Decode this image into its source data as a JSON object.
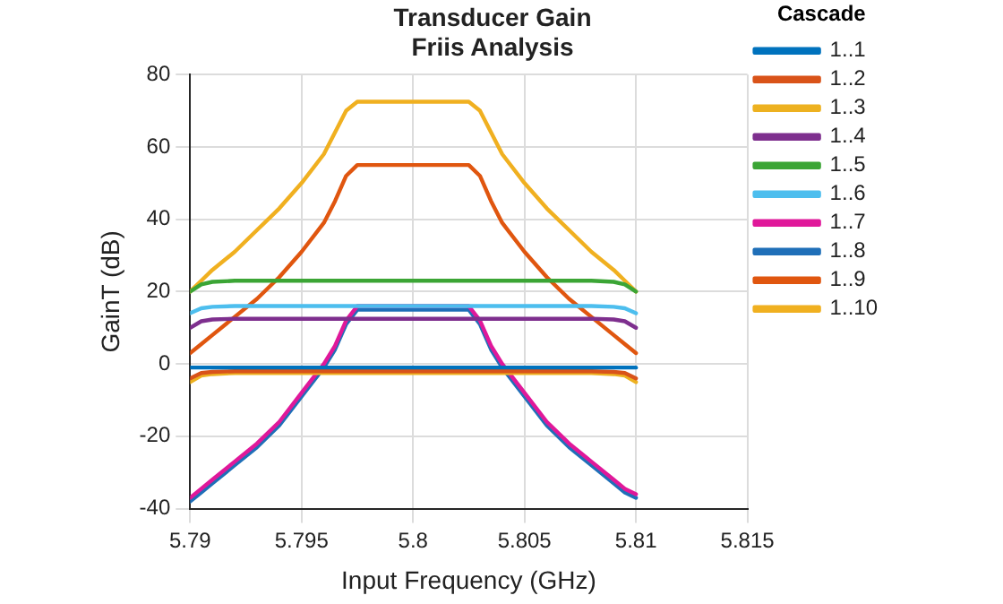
{
  "chart_data": {
    "type": "line",
    "title": "Transducer Gain\nFriis Analysis",
    "xlabel": "Input Frequency (GHz)",
    "ylabel": "GainT (dB)",
    "legend_title": "Cascade",
    "legend": "right",
    "grid": true,
    "marker": "none",
    "line_style": "solid",
    "x": [
      5.79,
      5.7905,
      5.791,
      5.792,
      5.793,
      5.794,
      5.795,
      5.796,
      5.7965,
      5.797,
      5.7975,
      5.8,
      5.8025,
      5.803,
      5.8035,
      5.804,
      5.805,
      5.806,
      5.807,
      5.808,
      5.809,
      5.8095,
      5.81
    ],
    "xlim": [
      5.79,
      5.815
    ],
    "xticks": [
      5.79,
      5.795,
      5.8,
      5.805,
      5.81,
      5.815
    ],
    "ylim": [
      -40,
      80
    ],
    "yticks": [
      -40,
      -20,
      0,
      20,
      40,
      60,
      80
    ],
    "series": [
      {
        "name": "1..1",
        "color": "#0072bd",
        "values": [
          -1,
          -1,
          -1,
          -1,
          -1,
          -1,
          -1,
          -1,
          -1,
          -1,
          -1,
          -1,
          -1,
          -1,
          -1,
          -1,
          -1,
          -1,
          -1,
          -1,
          -1,
          -1,
          -1
        ]
      },
      {
        "name": "1..2",
        "color": "#d95319",
        "values": [
          -4,
          -2.5,
          -2.2,
          -2,
          -2,
          -2,
          -2,
          -2,
          -2,
          -2,
          -2,
          -2,
          -2,
          -2,
          -2,
          -2,
          -2,
          -2,
          -2,
          -2,
          -2.2,
          -2.5,
          -4
        ]
      },
      {
        "name": "1..3",
        "color": "#edb120",
        "values": [
          -5,
          -3.2,
          -2.8,
          -2.5,
          -2.5,
          -2.5,
          -2.5,
          -2.5,
          -2.5,
          -2.5,
          -2.5,
          -2.5,
          -2.5,
          -2.5,
          -2.5,
          -2.5,
          -2.5,
          -2.5,
          -2.5,
          -2.5,
          -2.8,
          -3.2,
          -5
        ]
      },
      {
        "name": "1..4",
        "color": "#7e2f8e",
        "values": [
          10,
          11.8,
          12.3,
          12.5,
          12.5,
          12.5,
          12.5,
          12.5,
          12.5,
          12.5,
          12.5,
          12.5,
          12.5,
          12.5,
          12.5,
          12.5,
          12.5,
          12.5,
          12.5,
          12.5,
          12.3,
          11.8,
          10
        ]
      },
      {
        "name": "1..5",
        "color": "#3ba535",
        "values": [
          20,
          22,
          22.7,
          23,
          23,
          23,
          23,
          23,
          23,
          23,
          23,
          23,
          23,
          23,
          23,
          23,
          23,
          23,
          23,
          23,
          22.7,
          22,
          20
        ]
      },
      {
        "name": "1..6",
        "color": "#4dbeee",
        "values": [
          14,
          15.4,
          15.8,
          16,
          16,
          16,
          16,
          16,
          16,
          16,
          16,
          16,
          16,
          16,
          16,
          16,
          16,
          16,
          16,
          16,
          15.8,
          15.4,
          14
        ]
      },
      {
        "name": "1..7",
        "color": "#e0189a",
        "values": [
          -37,
          -34.5,
          -32,
          -27,
          -22,
          -16,
          -8,
          0,
          5,
          12,
          16,
          16,
          16,
          12,
          5,
          0,
          -8,
          -16,
          -22,
          -27,
          -32,
          -34.5,
          -36
        ]
      },
      {
        "name": "1..8",
        "color": "#1f6fb8",
        "values": [
          -38,
          -35.5,
          -33,
          -28,
          -23,
          -17,
          -9,
          -1,
          4,
          11,
          15,
          15,
          15,
          11,
          4,
          -1,
          -9,
          -17,
          -23,
          -28,
          -33,
          -35.5,
          -37
        ]
      },
      {
        "name": "1..9",
        "color": "#e0560f",
        "values": [
          3,
          5.5,
          8,
          13,
          18,
          24,
          31,
          39,
          45,
          52,
          55,
          55,
          55,
          52,
          45,
          39,
          31,
          24,
          18,
          13,
          8,
          5.5,
          3
        ]
      },
      {
        "name": "1..10",
        "color": "#f0b020",
        "values": [
          20,
          23,
          26,
          31,
          37,
          43,
          50,
          58,
          64,
          70,
          72.5,
          72.5,
          72.5,
          70,
          64,
          58,
          50,
          43,
          37,
          31,
          26,
          23,
          20
        ]
      }
    ]
  }
}
